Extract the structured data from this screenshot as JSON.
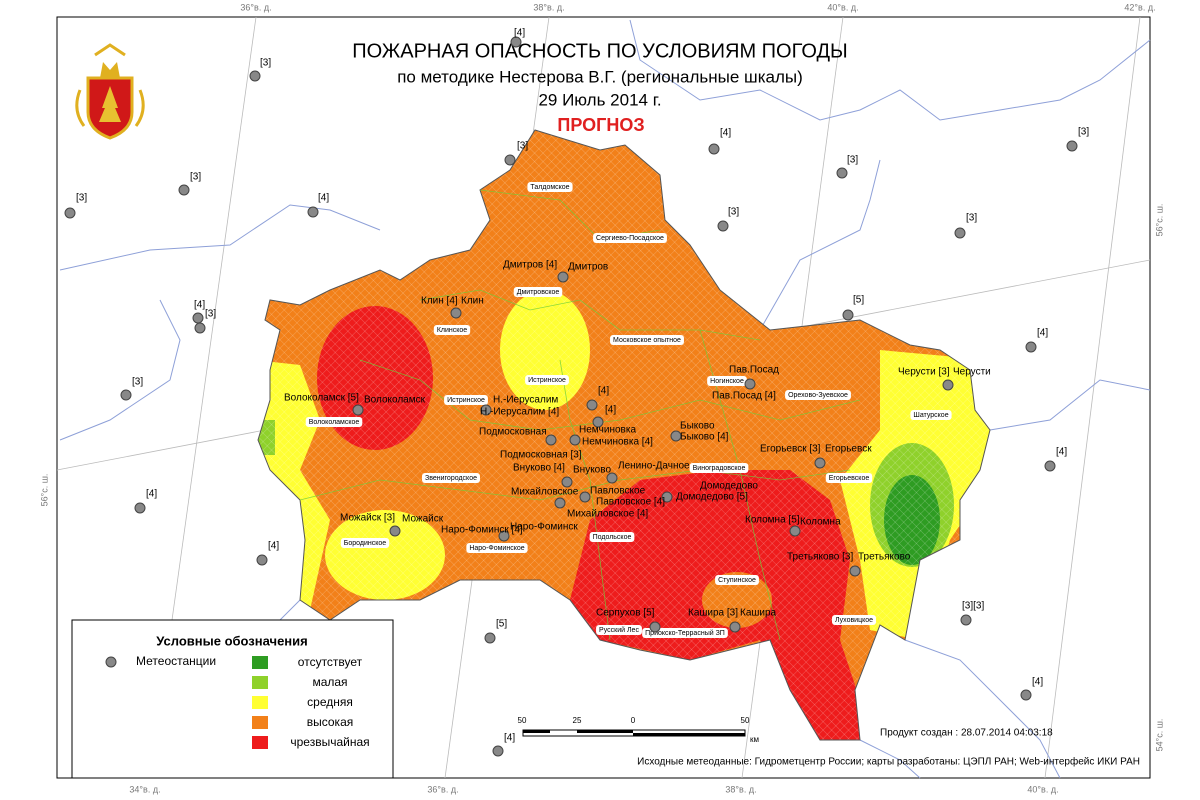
{
  "header": {
    "title": "ПОЖАРНАЯ ОПАСНОСТЬ ПО УСЛОВИЯМ ПОГОДЫ",
    "subtitle": "по методике Нестерова В.Г. (региональные шкалы)",
    "date": "29 Июль 2014 г.",
    "forecast": "ПРОГНОЗ"
  },
  "grid_labels": {
    "top": [
      "36°в. д.",
      "38°в. д.",
      "40°в. д.",
      "42°в. д."
    ],
    "bottom": [
      "34°в. д.",
      "36°в. д.",
      "38°в. д.",
      "40°в. д."
    ],
    "left": [
      "56°с. ш."
    ],
    "right": [
      "56°с. ш.",
      "54°с. ш."
    ]
  },
  "legend": {
    "title": "Условные обозначения",
    "station": "Метеостанции",
    "items": [
      {
        "label": "отсутствует",
        "color": "#2e9c22"
      },
      {
        "label": "малая",
        "color": "#8fd12b"
      },
      {
        "label": "средняя",
        "color": "#ffff33"
      },
      {
        "label": "высокая",
        "color": "#f28019"
      },
      {
        "label": "чрезвычайная",
        "color": "#ee1c1c"
      }
    ]
  },
  "scale": {
    "ticks": [
      "50",
      "25",
      "0",
      "50"
    ],
    "unit": "км"
  },
  "outer_stations": [
    "[4]",
    "[3]",
    "[3]",
    "[3]",
    "[4]",
    "[3]",
    "[4]",
    "[3]",
    "[3]",
    "[3]",
    "[3]",
    "[5]",
    "[4]",
    "[3]",
    "[4]",
    "[3]",
    "[4]",
    "[4]",
    "[4]",
    "[5]",
    "[3][3]",
    "[4]",
    "[4]"
  ],
  "stations": [
    {
      "labels": [
        "Дмитров [4]",
        "Дмитров"
      ]
    },
    {
      "labels": [
        "Клин [4]",
        "Клин"
      ]
    },
    {
      "labels": [
        "Волоколамск [5]",
        "Волоколамск"
      ]
    },
    {
      "labels": [
        "Н.-Иерусалим",
        "Н.-Иерусалим [4]"
      ]
    },
    {
      "labels": [
        "[4]"
      ]
    },
    {
      "labels": [
        "[4]"
      ]
    },
    {
      "labels": [
        "Подмосковная",
        "Подмосковная [3]"
      ]
    },
    {
      "labels": [
        "Немчиновка",
        "Немчиновка [4]"
      ]
    },
    {
      "labels": [
        "Быково",
        "Быково [4]"
      ]
    },
    {
      "labels": [
        "Внуково [4]",
        "Внуково"
      ]
    },
    {
      "labels": [
        "Ленино-Дачное"
      ]
    },
    {
      "labels": [
        "Домодедово",
        "Домодедово [5]"
      ]
    },
    {
      "labels": [
        "Михайловское",
        "Михайловское [4]"
      ]
    },
    {
      "labels": [
        "Павловское",
        "Павловское [4]"
      ]
    },
    {
      "labels": [
        "Наро-Фоминск [4]",
        "Наро-Фоминск"
      ]
    },
    {
      "labels": [
        "Можайск [3]",
        "Можайск"
      ]
    },
    {
      "labels": [
        "Коломна [5]",
        "Коломна"
      ]
    },
    {
      "labels": [
        "Третьяково [3]",
        "Третьяково"
      ]
    },
    {
      "labels": [
        "Серпухов [5]"
      ]
    },
    {
      "labels": [
        "Кашира [3]",
        "Кашира"
      ]
    },
    {
      "labels": [
        "Егорьевск [3]",
        "Егорьевск"
      ]
    },
    {
      "labels": [
        "Пав.Посад",
        "Пав.Посад [4]"
      ]
    },
    {
      "labels": [
        "Черусти [3]",
        "Черусти"
      ]
    }
  ],
  "districts": [
    "Талдомское",
    "Сергиево-Посадское",
    "Дмитровское",
    "Клинское",
    "Московское опытное",
    "Истринское",
    "Истринское",
    "Волоколамское",
    "Ногинское",
    "Орехово-Зуевское",
    "Шатурское",
    "Звенигородское",
    "Виноградовское",
    "Егорьевское",
    "Бородинское",
    "Наро-Фоминское",
    "Подольское",
    "Ступинское",
    "Луховицкое",
    "Русский Лес",
    "Приокско-Террасный ЗП"
  ],
  "footer": {
    "created": "Продукт создан : 28.07.2014 04:03:18",
    "sources": "Исходные метеоданные: Гидрометцентр России; карты разработаны: ЦЭПЛ РАН; Web-интерфейс ИКИ РАН"
  }
}
